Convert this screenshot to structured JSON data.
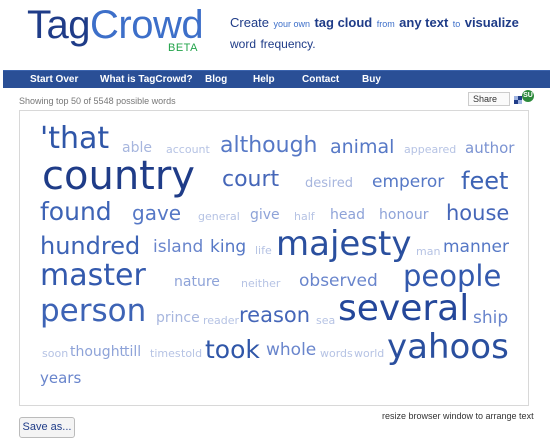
{
  "logo": {
    "tag": "Tag",
    "crowd": "Crowd",
    "beta": "BETA"
  },
  "tagline": {
    "create": "Create",
    "your_own": "your own",
    "tag_cloud": "tag cloud",
    "from": "from",
    "any_text": "any text",
    "to": "to",
    "visualize": "visualize",
    "word": "word",
    "frequency": "frequency."
  },
  "nav": {
    "items": [
      {
        "label": "Start Over"
      },
      {
        "label": "What is TagCrowd?"
      },
      {
        "label": "Blog"
      },
      {
        "label": "Help"
      },
      {
        "label": "Contact"
      },
      {
        "label": "Buy"
      }
    ]
  },
  "status": {
    "showing": "Showing top 50 of 5548 possible words"
  },
  "share": {
    "label": "Share",
    "badge": "SU"
  },
  "cloud": {
    "words": [
      {
        "text": "'that",
        "size": 30,
        "color": "#2f56a8"
      },
      {
        "text": "able",
        "size": 14,
        "color": "#a7b6de"
      },
      {
        "text": "account",
        "size": 11,
        "color": "#b6c3e4"
      },
      {
        "text": "although",
        "size": 22,
        "color": "#5678c6"
      },
      {
        "text": "animal",
        "size": 19,
        "color": "#5678c6"
      },
      {
        "text": "appeared",
        "size": 11,
        "color": "#b6c3e4"
      },
      {
        "text": "author",
        "size": 15,
        "color": "#7b93d2"
      },
      {
        "text": "country",
        "size": 40,
        "color": "#1f3c88"
      },
      {
        "text": "court",
        "size": 22,
        "color": "#4566b8"
      },
      {
        "text": "desired",
        "size": 13,
        "color": "#a7b6de"
      },
      {
        "text": "emperor",
        "size": 17,
        "color": "#5678c6"
      },
      {
        "text": "feet",
        "size": 24,
        "color": "#3d63b5"
      },
      {
        "text": "found",
        "size": 25,
        "color": "#3d63b5"
      },
      {
        "text": "gave",
        "size": 20,
        "color": "#5678c6"
      },
      {
        "text": "general",
        "size": 11,
        "color": "#b6c3e4"
      },
      {
        "text": "give",
        "size": 14,
        "color": "#8ea3d8"
      },
      {
        "text": "half",
        "size": 11,
        "color": "#b6c3e4"
      },
      {
        "text": "head",
        "size": 14,
        "color": "#8ea3d8"
      },
      {
        "text": "honour",
        "size": 14,
        "color": "#8ea3d8"
      },
      {
        "text": "house",
        "size": 21,
        "color": "#4566b8"
      },
      {
        "text": "hundred",
        "size": 24,
        "color": "#3d63b5"
      },
      {
        "text": "island",
        "size": 17,
        "color": "#6985cc"
      },
      {
        "text": "king",
        "size": 17,
        "color": "#5678c6"
      },
      {
        "text": "life",
        "size": 11,
        "color": "#b6c3e4"
      },
      {
        "text": "majesty",
        "size": 34,
        "color": "#2a4f9e"
      },
      {
        "text": "man",
        "size": 11,
        "color": "#b6c3e4"
      },
      {
        "text": "manner",
        "size": 17,
        "color": "#5678c6"
      },
      {
        "text": "master",
        "size": 30,
        "color": "#3359ad"
      },
      {
        "text": "nature",
        "size": 14,
        "color": "#8ea3d8"
      },
      {
        "text": "neither",
        "size": 11,
        "color": "#b6c3e4"
      },
      {
        "text": "observed",
        "size": 17,
        "color": "#6985cc"
      },
      {
        "text": "people",
        "size": 29,
        "color": "#3359ad"
      },
      {
        "text": "person",
        "size": 31,
        "color": "#3d63b5"
      },
      {
        "text": "prince",
        "size": 14,
        "color": "#a7b6de"
      },
      {
        "text": "reader",
        "size": 11,
        "color": "#b6c3e4"
      },
      {
        "text": "reason",
        "size": 21,
        "color": "#4566b8"
      },
      {
        "text": "sea",
        "size": 11,
        "color": "#b6c3e4"
      },
      {
        "text": "several",
        "size": 36,
        "color": "#24479a"
      },
      {
        "text": "ship",
        "size": 17,
        "color": "#6985cc"
      },
      {
        "text": "soon",
        "size": 11,
        "color": "#b6c3e4"
      },
      {
        "text": "thought",
        "size": 14,
        "color": "#8ea3d8"
      },
      {
        "text": "till",
        "size": 14,
        "color": "#8ea3d8"
      },
      {
        "text": "times",
        "size": 11,
        "color": "#b6c3e4"
      },
      {
        "text": "told",
        "size": 11,
        "color": "#b6c3e4"
      },
      {
        "text": "took",
        "size": 25,
        "color": "#2f56a8"
      },
      {
        "text": "whole",
        "size": 17,
        "color": "#6985cc"
      },
      {
        "text": "words",
        "size": 11,
        "color": "#b6c3e4"
      },
      {
        "text": "world",
        "size": 11,
        "color": "#b6c3e4"
      },
      {
        "text": "yahoos",
        "size": 34,
        "color": "#2a4f9e"
      },
      {
        "text": "years",
        "size": 15,
        "color": "#6985cc"
      }
    ]
  },
  "footer": {
    "resize_note": "resize browser window to arrange text",
    "save_label": "Save as..."
  }
}
